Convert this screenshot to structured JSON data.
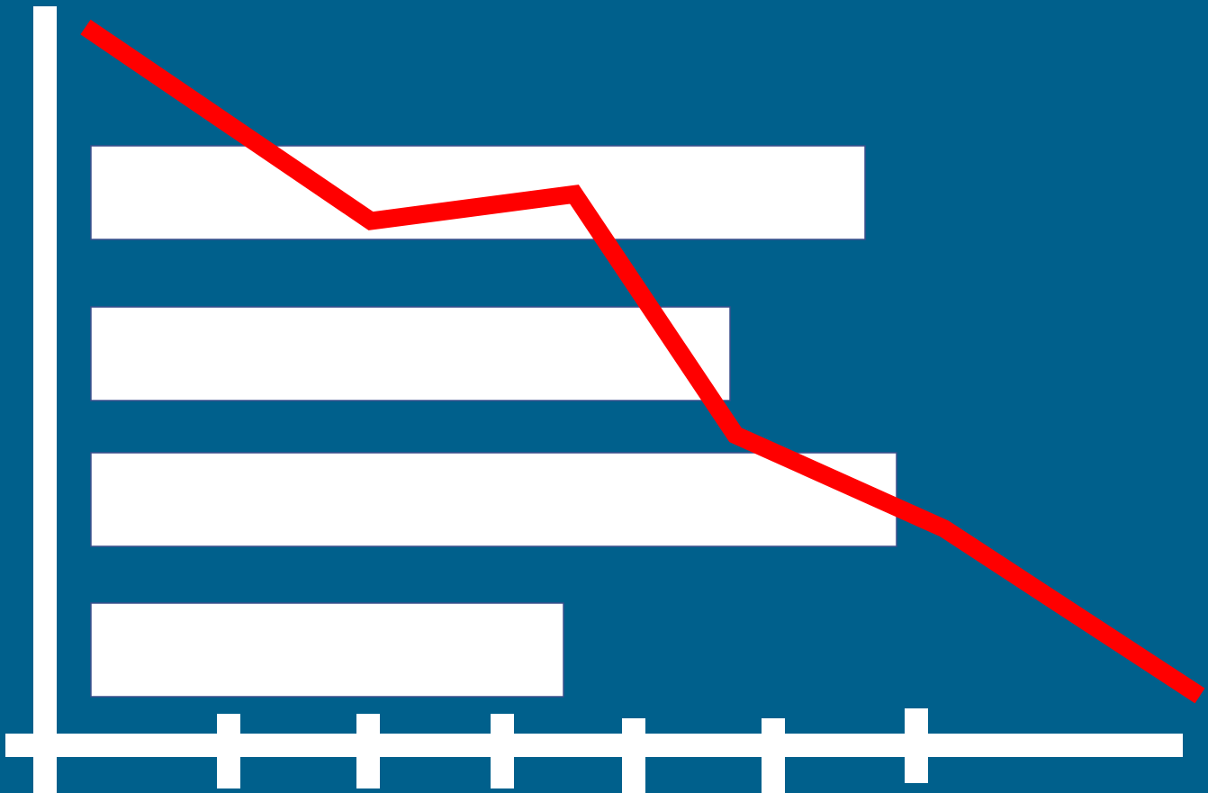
{
  "colors": {
    "background": "#00608c",
    "bars": "#ffffff",
    "bar_outline": "#3a4f8c",
    "axes": "#ffffff",
    "line": "#ff0000"
  },
  "chart_data": {
    "type": "bar",
    "orientation": "horizontal",
    "categories": [
      "",
      "",
      "",
      ""
    ],
    "bars": {
      "name": "",
      "values": [
        8.6,
        7.1,
        8.95,
        5.25
      ]
    },
    "xlim": [
      0,
      13
    ],
    "tick_count": 6,
    "overlay_line": {
      "type": "line",
      "name": "",
      "values": [
        100,
        71,
        75,
        39,
        25,
        0
      ],
      "ylim": [
        -5,
        110
      ]
    },
    "title": "",
    "xlabel": "",
    "ylabel": "",
    "legend": "none",
    "grid": false
  }
}
